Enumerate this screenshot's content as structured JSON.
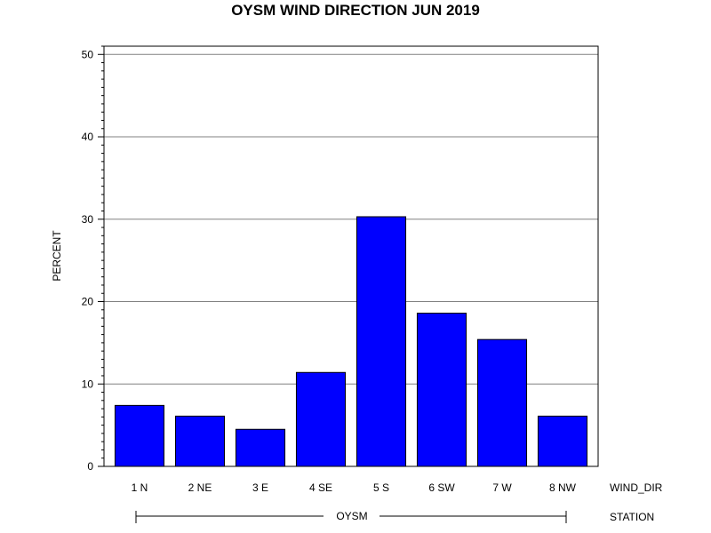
{
  "chart_data": {
    "type": "bar",
    "title": "OYSM WIND DIRECTION JUN 2019",
    "xlabel": "WIND_DIR",
    "ylabel": "PERCENT",
    "group_label": "STATION",
    "group_value": "OYSM",
    "categories": [
      "1 N",
      "2 NE",
      "3 E",
      "4 SE",
      "5 S",
      "6 SW",
      "7 W",
      "8 NW"
    ],
    "values": [
      7.4,
      6.1,
      4.5,
      11.4,
      30.3,
      18.6,
      15.4,
      6.1
    ],
    "ylim": [
      0,
      51
    ],
    "yticks": [
      0,
      10,
      20,
      30,
      40,
      50
    ],
    "grid": true,
    "legend": "none",
    "colors": {
      "bar": "#0000FF",
      "bar_stroke": "#000000",
      "grid": "#808080"
    }
  }
}
